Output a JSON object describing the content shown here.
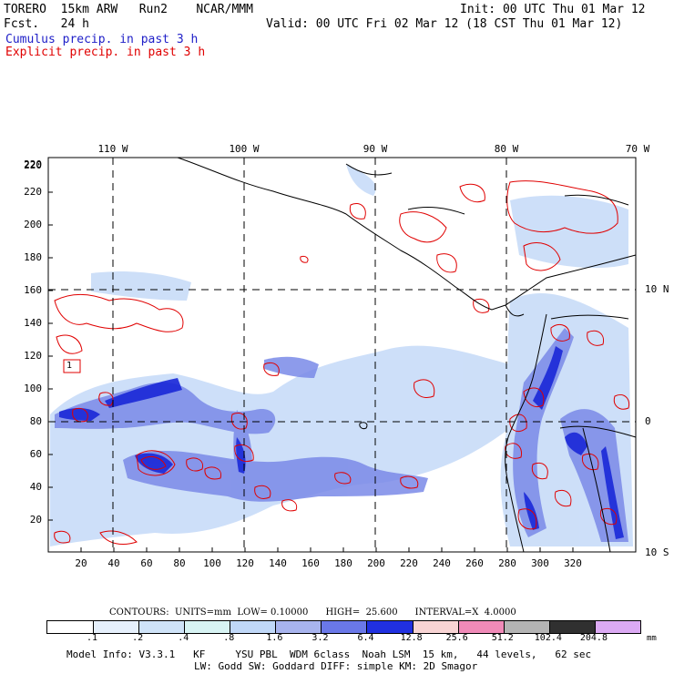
{
  "header": {
    "model_line": "TORERO  15km ARW   Run2    NCAR/MMM",
    "fcst_line": "Fcst.   24 h",
    "init_line": "Init: 00 UTC Thu 01 Mar 12",
    "valid_line": "Valid: 00 UTC Fri 02 Mar 12 (18 CST Thu 01 Mar 12)",
    "cumulus_label": "Cumulus precip. in past 3 h",
    "explicit_label": "Explicit precip. in past 3 h"
  },
  "map": {
    "lon_labels": [
      "110 W",
      "100 W",
      "90 W",
      "80 W",
      "70 W"
    ],
    "lat_labels": [
      "10 N",
      "0",
      "10 S"
    ],
    "x_ticks": [
      "20",
      "40",
      "60",
      "80",
      "100",
      "120",
      "140",
      "160",
      "180",
      "200",
      "220",
      "240",
      "260",
      "280",
      "300",
      "320"
    ],
    "y_ticks": [
      "20",
      "40",
      "60",
      "80",
      "100",
      "120",
      "140",
      "160",
      "180",
      "200",
      "220"
    ],
    "box_label": "1",
    "colors": {
      "cumulus_light": "#c8dcf8",
      "cumulus_mid": "#7a8ae8",
      "cumulus_dark": "#1a28d8",
      "explicit_contour": "#e00000",
      "coast": "#000000"
    }
  },
  "footer": {
    "contours_line": "CONTOURS:  UNITS=mm  LOW= 0.10000      HIGH=  25.600      INTERVAL=X  4.0000",
    "scale_unit": "mm",
    "scale_labels": [
      ".1",
      ".2",
      ".4",
      ".8",
      "1.6",
      "3.2",
      "6.4",
      "12.8",
      "25.6",
      "51.2",
      "102.4",
      "204.8"
    ],
    "scale_colors": [
      "#ffffff",
      "#e6f0fc",
      "#cfe3f8",
      "#d8f4f4",
      "#c0d8f8",
      "#a8b4ee",
      "#6a78e8",
      "#2030e0",
      "#f8d4d4",
      "#f08ab8",
      "#b4b4b4",
      "#303030",
      "#dcaaf4"
    ],
    "model_info_1": "Model Info: V3.3.1   KF     YSU PBL  WDM 6class  Noah LSM  15 km,   44 levels,   62 sec",
    "model_info_2": "LW: Godd SW: Goddard DIFF: simple KM: 2D Smagor"
  }
}
